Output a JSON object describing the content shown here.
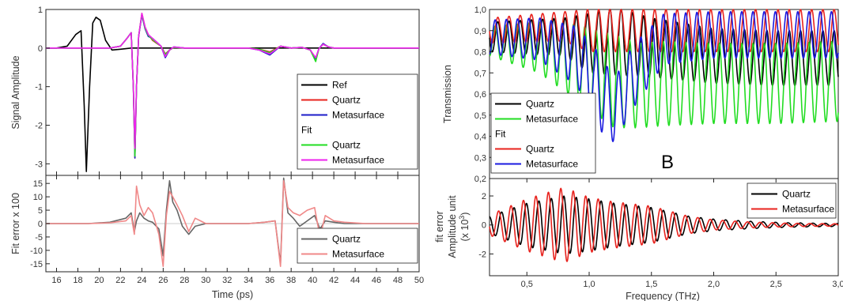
{
  "chart_data": [
    {
      "id": "time_signal",
      "type": "line",
      "xlabel": "Time (ps)",
      "ylabel": "Signal Amplitude",
      "xlim": [
        15,
        50
      ],
      "ylim": [
        -3.3,
        1.0
      ],
      "xticks": [
        16,
        18,
        20,
        22,
        24,
        26,
        28,
        30,
        32,
        34,
        36,
        38,
        40,
        42,
        44,
        46,
        48,
        50
      ],
      "yticks": [
        1,
        0,
        -1,
        -2,
        -3
      ],
      "grid": false,
      "legend_position": "bottom-right",
      "legend": [
        {
          "label": "Ref",
          "color": "#000000"
        },
        {
          "label": "Quartz",
          "color": "#e8231e"
        },
        {
          "label": "Metasurface",
          "color": "#1c1cc8"
        },
        {
          "label": "Fit",
          "color": null
        },
        {
          "label": "Quartz",
          "color": "#22dd22"
        },
        {
          "label": "Metasurface",
          "color": "#ee22ee"
        }
      ],
      "series": [
        {
          "name": "Ref",
          "color": "#000000",
          "x": [
            15,
            16,
            17,
            17.8,
            18.3,
            18.6,
            18.8,
            19.1,
            19.4,
            19.7,
            20.1,
            20.6,
            21.2,
            22,
            23,
            24,
            26,
            30,
            40,
            50
          ],
          "y": [
            0,
            0,
            0.05,
            0.35,
            0.45,
            -1.5,
            -3.2,
            -1.0,
            0.65,
            0.8,
            0.72,
            0.2,
            -0.05,
            -0.03,
            0,
            0,
            0,
            0,
            0,
            0
          ]
        },
        {
          "name": "Quartz",
          "color": "#e8231e",
          "x": [
            15,
            21,
            22,
            22.6,
            23.0,
            23.2,
            23.35,
            23.5,
            23.7,
            24.0,
            24.3,
            24.6,
            25.0,
            25.4,
            25.8,
            26.2,
            26.6,
            27,
            28,
            30,
            34,
            35,
            36,
            37,
            38,
            39,
            39.8,
            40.3,
            40.6,
            41,
            41.5,
            42,
            43,
            44,
            45,
            50
          ],
          "y": [
            0,
            0,
            0.05,
            0.25,
            0.4,
            -1,
            -2.85,
            -1,
            0.3,
            0.9,
            0.55,
            0.35,
            0.2,
            0.12,
            0.05,
            -0.15,
            -0.05,
            0.02,
            0,
            0,
            0,
            -0.03,
            -0.1,
            0.05,
            0,
            0.02,
            -0.05,
            -0.3,
            -0.02,
            0.1,
            0.03,
            0,
            0,
            0,
            0,
            0
          ]
        },
        {
          "name": "Metasurface",
          "color": "#1c1cc8",
          "x": [
            15,
            21,
            22,
            22.6,
            23.0,
            23.2,
            23.35,
            23.5,
            23.7,
            24.0,
            24.3,
            24.6,
            25.0,
            25.4,
            25.8,
            26.2,
            26.6,
            27,
            28,
            30,
            34,
            35,
            36,
            37,
            38,
            39,
            39.8,
            40.3,
            40.6,
            41,
            41.5,
            42,
            43,
            44,
            45,
            50
          ],
          "y": [
            0,
            0,
            0.05,
            0.25,
            0.4,
            -1,
            -2.85,
            -1,
            0.3,
            0.85,
            0.5,
            0.3,
            0.25,
            0.15,
            0.05,
            -0.25,
            -0.05,
            0.03,
            0,
            0,
            0,
            -0.05,
            -0.18,
            0.05,
            0,
            0.02,
            -0.05,
            -0.28,
            -0.02,
            0.12,
            0.03,
            0,
            0,
            0,
            0,
            0
          ]
        },
        {
          "name": "Quartz",
          "color": "#22dd22",
          "x": [
            15,
            21,
            22,
            22.6,
            23.0,
            23.2,
            23.35,
            23.5,
            23.7,
            24.0,
            24.3,
            24.6,
            25.0,
            25.4,
            25.8,
            26.2,
            26.6,
            27,
            28,
            30,
            34,
            35,
            36,
            37,
            38,
            39,
            39.8,
            40.3,
            40.6,
            41,
            41.5,
            42,
            43,
            44,
            45,
            50
          ],
          "y": [
            0,
            0,
            0.05,
            0.25,
            0.4,
            -1,
            -2.8,
            -1,
            0.3,
            0.88,
            0.52,
            0.33,
            0.22,
            0.13,
            0.05,
            -0.17,
            -0.05,
            0.02,
            0,
            0,
            0,
            -0.03,
            -0.12,
            0.05,
            0,
            0.02,
            -0.05,
            -0.35,
            -0.02,
            0.1,
            0.03,
            0,
            0,
            0,
            0,
            0
          ]
        },
        {
          "name": "Metasurface",
          "color": "#ee22ee",
          "x": [
            15,
            21,
            22,
            22.6,
            23.0,
            23.2,
            23.35,
            23.5,
            23.7,
            24.0,
            24.3,
            24.6,
            25.0,
            25.4,
            25.8,
            26.2,
            26.6,
            27,
            28,
            30,
            34,
            35,
            36,
            37,
            38,
            39,
            39.8,
            40.3,
            40.6,
            41,
            41.5,
            42,
            43,
            44,
            45,
            50
          ],
          "y": [
            0,
            0,
            0.05,
            0.25,
            0.4,
            -1,
            -2.6,
            -1,
            0.3,
            0.9,
            0.55,
            0.35,
            0.25,
            0.15,
            0.05,
            -0.22,
            -0.05,
            0.03,
            0,
            0,
            0,
            -0.05,
            -0.15,
            0.05,
            0,
            0.02,
            -0.05,
            -0.25,
            -0.02,
            0.1,
            0.03,
            0,
            0,
            0,
            0,
            0
          ]
        }
      ]
    },
    {
      "id": "time_error",
      "type": "line",
      "xlabel": "Time (ps)",
      "ylabel": "Fit error x 100",
      "xlim": [
        15,
        50
      ],
      "ylim": [
        -18,
        18
      ],
      "xticks": [
        16,
        18,
        20,
        22,
        24,
        26,
        28,
        30,
        32,
        34,
        36,
        38,
        40,
        42,
        44,
        46,
        48,
        50
      ],
      "yticks": [
        15,
        10,
        5,
        0,
        -5,
        -10,
        -15
      ],
      "grid": false,
      "legend_position": "bottom-right",
      "legend": [
        {
          "label": "Quartz",
          "color": "#666666"
        },
        {
          "label": "Metasurface",
          "color": "#f08888"
        }
      ],
      "series": [
        {
          "name": "Quartz",
          "color": "#666666",
          "x": [
            15,
            19,
            21,
            22.5,
            23.0,
            23.3,
            23.5,
            23.8,
            24.2,
            24.6,
            25,
            25.6,
            26.0,
            26.3,
            26.6,
            26.9,
            27.3,
            27.8,
            28.4,
            29,
            30,
            34,
            35.5,
            36.5,
            37.0,
            37.3,
            37.7,
            38.2,
            38.8,
            39.5,
            40.2,
            40.7,
            41.2,
            42,
            43,
            45,
            50
          ],
          "y": [
            0,
            0,
            0.5,
            2,
            4,
            -3,
            1,
            4,
            2,
            1,
            0.5,
            -2,
            -12,
            5,
            16,
            8,
            5,
            -1,
            -4,
            -1,
            0,
            0,
            0.5,
            1,
            -15,
            17,
            4,
            2,
            -1,
            1,
            3,
            -2,
            1,
            0.5,
            0,
            0,
            0
          ]
        },
        {
          "name": "Metasurface",
          "color": "#f08888",
          "x": [
            15,
            19,
            21,
            22.5,
            23.0,
            23.3,
            23.5,
            23.8,
            24.2,
            24.6,
            25,
            25.6,
            26.0,
            26.3,
            26.6,
            26.9,
            27.3,
            27.8,
            28.4,
            29,
            30,
            34,
            35.5,
            36.5,
            37.0,
            37.3,
            37.7,
            38.2,
            38.8,
            39.5,
            40.2,
            40.7,
            41.2,
            42,
            43,
            45,
            50
          ],
          "y": [
            0,
            0,
            0.3,
            1,
            3,
            -4,
            14,
            7,
            3,
            6,
            4,
            -4,
            -16,
            3,
            12,
            10,
            7,
            3,
            -3,
            2,
            0,
            0,
            0.5,
            1,
            -16,
            16,
            6,
            4,
            3,
            5,
            6,
            -5,
            3,
            1,
            0.5,
            0,
            0
          ]
        }
      ]
    },
    {
      "id": "transmission",
      "type": "line",
      "xlabel": "Frequency (THz)",
      "ylabel": "Transmission",
      "xlim": [
        0.2,
        3.0
      ],
      "ylim": [
        0.2,
        1.0
      ],
      "yticks": [
        "1,0",
        "0,9",
        "0,8",
        "0,7",
        "0,6",
        "0,5",
        "0,4",
        "0,3",
        "0,2"
      ],
      "annotation": "B",
      "grid": false,
      "legend_position": "bottom-left",
      "legend": [
        {
          "label": "Quartz",
          "color": "#000000"
        },
        {
          "label": "Metasurface",
          "color": "#22dd22"
        },
        {
          "label": "Fit",
          "color": null
        },
        {
          "label": "Quartz",
          "color": "#e8231e"
        },
        {
          "label": "Metasurface",
          "color": "#1a1ae0"
        }
      ],
      "series": [
        {
          "name": "Quartz",
          "color": "#000000",
          "x": [
            0.2,
            0.8,
            1.0,
            1.2,
            1.5,
            2.0,
            2.5,
            3.0
          ],
          "y": [
            0.87,
            0.87,
            0.84,
            0.85,
            0.82,
            0.78,
            0.77,
            0.77
          ],
          "amplitude": [
            0.07,
            0.09,
            0.14,
            0.16,
            0.14,
            0.13,
            0.13,
            0.13
          ],
          "period": 0.09
        },
        {
          "name": "Metasurface",
          "color": "#22dd22",
          "x": [
            0.2,
            0.6,
            0.9,
            1.2,
            1.4,
            1.6,
            2.0,
            2.5,
            3.0
          ],
          "y": [
            0.85,
            0.82,
            0.75,
            0.66,
            0.64,
            0.65,
            0.65,
            0.65,
            0.66
          ],
          "amplitude": [
            0.07,
            0.12,
            0.18,
            0.22,
            0.2,
            0.2,
            0.19,
            0.19,
            0.19
          ],
          "period": 0.09
        },
        {
          "name": "Quartz",
          "color": "#e8231e",
          "x": [
            0.2,
            0.8,
            1.0,
            1.2,
            1.5,
            2.0,
            2.5,
            3.0
          ],
          "y": [
            0.9,
            0.92,
            0.9,
            0.9,
            0.9,
            0.9,
            0.9,
            0.9
          ],
          "amplitude": [
            0.06,
            0.07,
            0.1,
            0.1,
            0.1,
            0.1,
            0.1,
            0.1
          ],
          "period": 0.09
        },
        {
          "name": "Metasurface",
          "color": "#1a1ae0",
          "x": [
            0.2,
            0.6,
            0.9,
            1.1,
            1.2,
            1.35,
            1.6,
            2.0,
            3.0
          ],
          "y": [
            0.87,
            0.86,
            0.78,
            0.6,
            0.52,
            0.68,
            0.86,
            0.88,
            0.88
          ],
          "amplitude": [
            0.08,
            0.1,
            0.14,
            0.18,
            0.15,
            0.15,
            0.12,
            0.11,
            0.11
          ],
          "period": 0.09
        }
      ]
    },
    {
      "id": "freq_error",
      "type": "line",
      "xlabel": "Frequency (THz)",
      "ylabel": [
        "fit error",
        "Amplitude unit",
        "(x 10",
        "3",
        ")"
      ],
      "xlim": [
        0.2,
        3.0
      ],
      "ylim": [
        -3.5,
        3.2
      ],
      "xticks": [
        "0,5",
        "1,0",
        "1,5",
        "2,0",
        "2,5",
        "3,0"
      ],
      "yticks": [
        2,
        0,
        -2
      ],
      "grid": false,
      "legend_position": "top-right",
      "legend": [
        {
          "label": "Quartz",
          "color": "#000000"
        },
        {
          "label": "Metasurface",
          "color": "#e8231e"
        }
      ],
      "series": [
        {
          "name": "Quartz",
          "color": "#000000",
          "x": [
            0.2,
            0.5,
            0.8,
            1.0,
            1.2,
            1.5,
            1.8,
            2.0,
            2.3,
            2.6,
            3.0
          ],
          "y": [
            0,
            0,
            0,
            0,
            0,
            0,
            0,
            0,
            0,
            0,
            0
          ],
          "amplitude": [
            0.6,
            1.5,
            2.0,
            1.8,
            1.5,
            1.2,
            0.6,
            0.4,
            0.25,
            0.15,
            0.1
          ],
          "period": 0.1
        },
        {
          "name": "Metasurface",
          "color": "#e8231e",
          "x": [
            0.2,
            0.5,
            0.8,
            1.0,
            1.2,
            1.5,
            1.8,
            2.0,
            2.3,
            2.6,
            3.0
          ],
          "y": [
            0,
            0,
            0,
            0,
            0,
            0,
            0,
            0,
            0,
            0,
            0
          ],
          "amplitude": [
            0.7,
            1.8,
            2.6,
            1.9,
            1.6,
            1.3,
            0.6,
            0.35,
            0.2,
            0.12,
            0.08
          ],
          "period": 0.1
        }
      ]
    }
  ]
}
